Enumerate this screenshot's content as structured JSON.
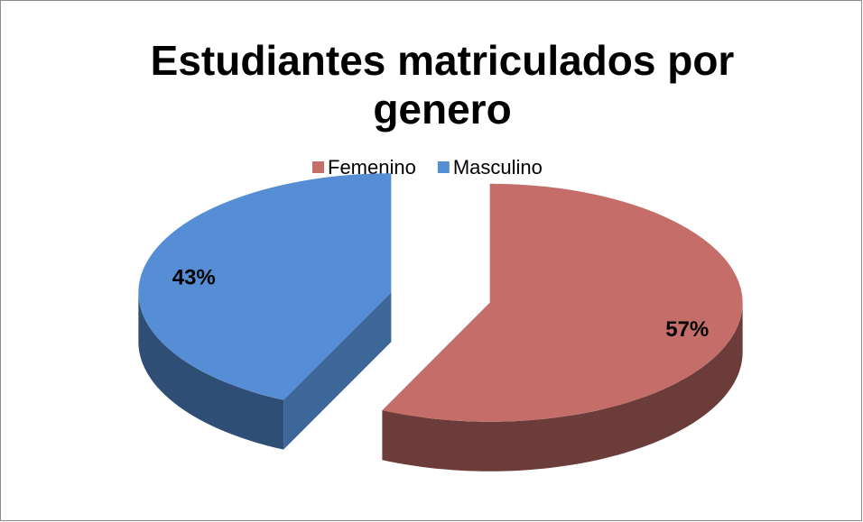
{
  "chart_data": {
    "type": "pie",
    "title": "Estudiantes matriculados por genero",
    "categories": [
      "Femenino",
      "Masculino"
    ],
    "values": [
      57,
      43
    ],
    "value_labels": [
      "57%",
      "43%"
    ],
    "colors": [
      "#c46d69",
      "#558ed5"
    ],
    "legend": "top"
  }
}
